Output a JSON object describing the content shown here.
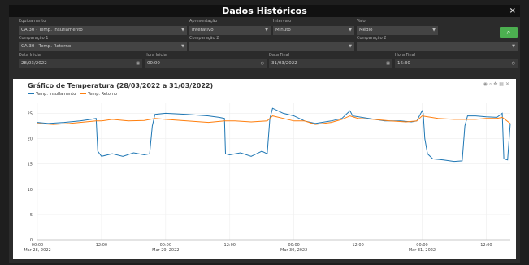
{
  "window": {
    "title": "Dados Históricos",
    "close": "×"
  },
  "filters": {
    "equipment_label": "Equipamento",
    "equipment_value": "CA 30 · Temp. Insuflamento",
    "visualization_label": "Apresentação",
    "visualization_value": "Interativo",
    "interval_label": "Intervalo",
    "interval_value": "Minuto",
    "value_label": "Valor",
    "value_value": "Médio",
    "compare1_label": "Comparação 1",
    "compare1_value": "CA 30 · Temp. Retorno",
    "compare2_label": "Comparação 2",
    "compare2_value": "",
    "compare3_label": "Comparação 2",
    "compare3_value": "",
    "start_date_label": "Data Inicial",
    "start_date_value": "28/03/2022",
    "start_hour_label": "Hora Inicial",
    "start_hour_value": "00:00",
    "end_date_label": "Data Final",
    "end_date_value": "31/03/2022",
    "end_hour_label": "Hora Final",
    "end_hour_value": "16:30",
    "search_icon": "search-icon"
  },
  "chart_data": {
    "type": "line",
    "title": "Gráfico de Temperatura (28/03/2022 a 31/03/2022)",
    "ylim": [
      0,
      27
    ],
    "yticks": [
      "25",
      "20",
      "15",
      "10",
      "5",
      "0"
    ],
    "xticks": [
      {
        "t": 0,
        "l1": "00:00",
        "l2": "Mar 28, 2022"
      },
      {
        "t": 12,
        "l1": "12:00",
        "l2": ""
      },
      {
        "t": 24,
        "l1": "00:00",
        "l2": "Mar 29, 2022"
      },
      {
        "t": 36,
        "l1": "12:00",
        "l2": ""
      },
      {
        "t": 48,
        "l1": "00:00",
        "l2": "Mar 30, 2022"
      },
      {
        "t": 60,
        "l1": "12:00",
        "l2": ""
      },
      {
        "t": 72,
        "l1": "00:00",
        "l2": "Mar 31, 2022"
      },
      {
        "t": 84,
        "l1": "12:00",
        "l2": ""
      }
    ],
    "x_hours_range": [
      0,
      88.5
    ],
    "series": [
      {
        "name": "Temp. Insuflamento",
        "color": "#1f77b4",
        "points": [
          [
            0,
            23.2
          ],
          [
            2,
            23
          ],
          [
            5,
            23.2
          ],
          [
            8,
            23.5
          ],
          [
            10,
            23.8
          ],
          [
            11,
            24
          ],
          [
            11.3,
            17.5
          ],
          [
            12,
            16.5
          ],
          [
            14,
            17
          ],
          [
            16,
            16.5
          ],
          [
            18,
            17.2
          ],
          [
            20,
            16.8
          ],
          [
            21,
            17
          ],
          [
            21.5,
            22.5
          ],
          [
            22,
            24.8
          ],
          [
            24,
            25
          ],
          [
            28,
            24.8
          ],
          [
            32,
            24.5
          ],
          [
            34,
            24.2
          ],
          [
            35,
            24
          ],
          [
            35.2,
            17
          ],
          [
            36,
            16.8
          ],
          [
            38,
            17.2
          ],
          [
            40,
            16.5
          ],
          [
            42,
            17.5
          ],
          [
            43,
            17
          ],
          [
            43.5,
            24
          ],
          [
            44,
            26
          ],
          [
            46,
            25
          ],
          [
            48,
            24.5
          ],
          [
            50,
            23.5
          ],
          [
            52,
            23
          ],
          [
            55,
            23.5
          ],
          [
            57,
            24
          ],
          [
            58,
            25
          ],
          [
            58.5,
            25.5
          ],
          [
            59,
            24.5
          ],
          [
            62,
            24
          ],
          [
            65,
            23.5
          ],
          [
            68,
            23.5
          ],
          [
            70,
            23.3
          ],
          [
            71,
            23.5
          ],
          [
            72,
            25.5
          ],
          [
            72.2,
            25
          ],
          [
            72.5,
            20
          ],
          [
            73,
            17
          ],
          [
            74,
            16
          ],
          [
            76,
            15.8
          ],
          [
            78,
            15.5
          ],
          [
            79.5,
            15.6
          ],
          [
            80,
            22.5
          ],
          [
            80.5,
            24.5
          ],
          [
            82,
            24.5
          ],
          [
            84,
            24.3
          ],
          [
            86,
            24.2
          ],
          [
            87,
            25
          ],
          [
            87.3,
            16
          ],
          [
            88,
            15.8
          ],
          [
            88.5,
            23
          ]
        ]
      },
      {
        "name": "Temp. Retorno",
        "color": "#ff7f0e",
        "points": [
          [
            0,
            23
          ],
          [
            3,
            22.8
          ],
          [
            6,
            23
          ],
          [
            9,
            23.3
          ],
          [
            11,
            23.5
          ],
          [
            12,
            23.5
          ],
          [
            14,
            23.8
          ],
          [
            17,
            23.5
          ],
          [
            20,
            23.6
          ],
          [
            22,
            24
          ],
          [
            24,
            23.8
          ],
          [
            28,
            23.5
          ],
          [
            32,
            23.2
          ],
          [
            35,
            23.5
          ],
          [
            37,
            23.5
          ],
          [
            40,
            23.3
          ],
          [
            43,
            23.5
          ],
          [
            44,
            24.5
          ],
          [
            46,
            24
          ],
          [
            48,
            23.5
          ],
          [
            50,
            23.5
          ],
          [
            52,
            22.8
          ],
          [
            55,
            23.2
          ],
          [
            57,
            23.8
          ],
          [
            58.5,
            24.5
          ],
          [
            60,
            24
          ],
          [
            63,
            23.8
          ],
          [
            66,
            23.5
          ],
          [
            69,
            23.3
          ],
          [
            71,
            23.5
          ],
          [
            72,
            24.5
          ],
          [
            75,
            24
          ],
          [
            78,
            23.8
          ],
          [
            80,
            23.8
          ],
          [
            82,
            23.8
          ],
          [
            84,
            24
          ],
          [
            86,
            24
          ],
          [
            87,
            24.2
          ],
          [
            88.5,
            23
          ]
        ]
      }
    ]
  }
}
